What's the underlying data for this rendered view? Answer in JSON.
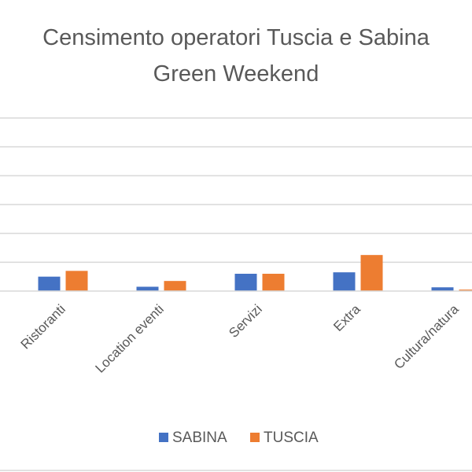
{
  "chart_data": {
    "type": "bar",
    "title_lines": [
      "Censimento operatori Tuscia e Sabina",
      "Green Weekend"
    ],
    "categories": [
      "Ristoranti",
      "Location eventi",
      "Servizi",
      "Extra",
      "Cultura/natura"
    ],
    "series": [
      {
        "name": "SABINA",
        "color": "#4472C4",
        "values": [
          5,
          1.5,
          6,
          6.5,
          1.3
        ]
      },
      {
        "name": "TUSCIA",
        "color": "#ED7D31",
        "values": [
          7,
          3.5,
          6,
          12.5,
          0.5
        ]
      }
    ],
    "ylim": [
      0,
      60
    ],
    "grid": true,
    "gridline_count": 6,
    "legend_position": "bottom"
  }
}
